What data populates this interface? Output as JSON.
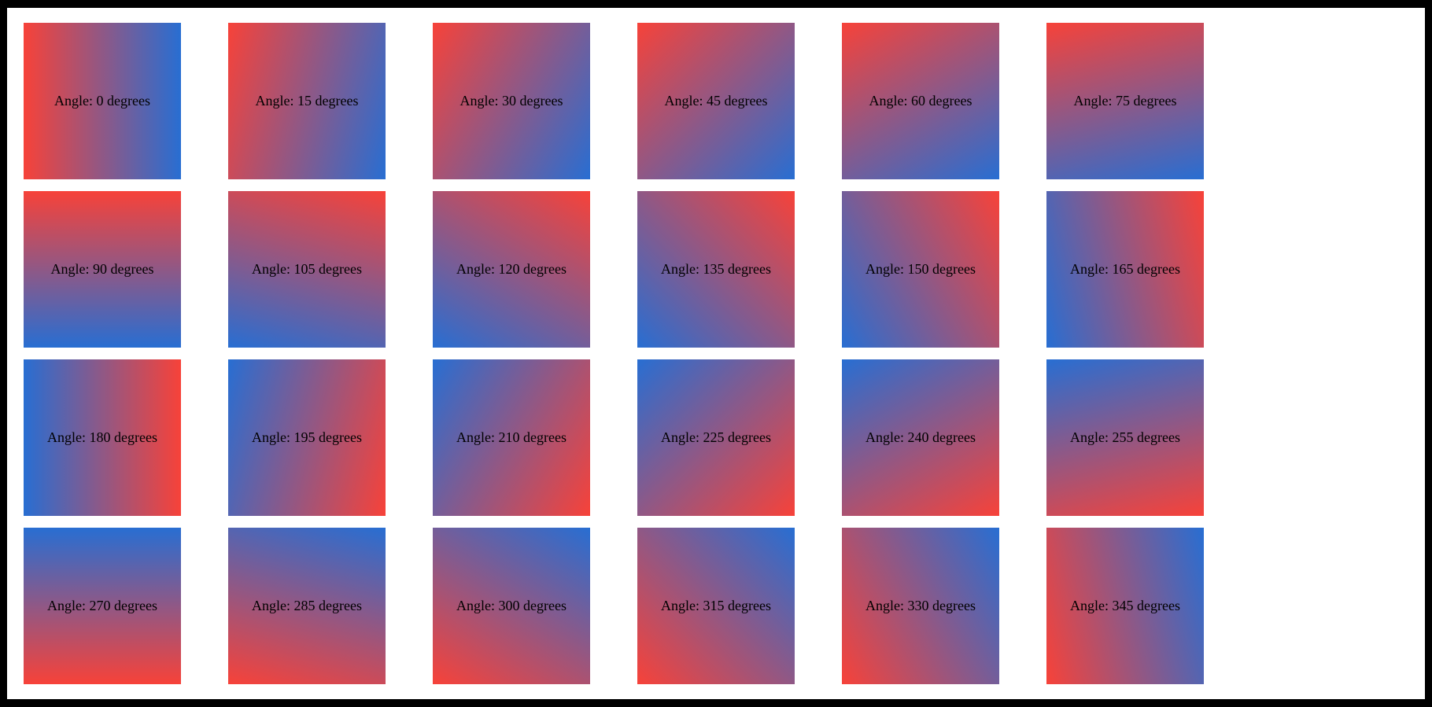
{
  "page": {
    "background": "#ffffff",
    "frame_color": "#000000"
  },
  "colors": {
    "gradient_start": "#f74239",
    "gradient_end": "#286ed2",
    "label_text": "#000000"
  },
  "tiles": [
    {
      "angle_degrees": 0,
      "label": "Angle: 0 degrees"
    },
    {
      "angle_degrees": 15,
      "label": "Angle: 15 degrees"
    },
    {
      "angle_degrees": 30,
      "label": "Angle: 30 degrees"
    },
    {
      "angle_degrees": 45,
      "label": "Angle: 45 degrees"
    },
    {
      "angle_degrees": 60,
      "label": "Angle: 60 degrees"
    },
    {
      "angle_degrees": 75,
      "label": "Angle: 75 degrees"
    },
    {
      "angle_degrees": 90,
      "label": "Angle: 90 degrees"
    },
    {
      "angle_degrees": 105,
      "label": "Angle: 105 degrees"
    },
    {
      "angle_degrees": 120,
      "label": "Angle: 120 degrees"
    },
    {
      "angle_degrees": 135,
      "label": "Angle: 135 degrees"
    },
    {
      "angle_degrees": 150,
      "label": "Angle: 150 degrees"
    },
    {
      "angle_degrees": 165,
      "label": "Angle: 165 degrees"
    },
    {
      "angle_degrees": 180,
      "label": "Angle: 180 degrees"
    },
    {
      "angle_degrees": 195,
      "label": "Angle: 195 degrees"
    },
    {
      "angle_degrees": 210,
      "label": "Angle: 210 degrees"
    },
    {
      "angle_degrees": 225,
      "label": "Angle: 225 degrees"
    },
    {
      "angle_degrees": 240,
      "label": "Angle: 240 degrees"
    },
    {
      "angle_degrees": 255,
      "label": "Angle: 255 degrees"
    },
    {
      "angle_degrees": 270,
      "label": "Angle: 270 degrees"
    },
    {
      "angle_degrees": 285,
      "label": "Angle: 285 degrees"
    },
    {
      "angle_degrees": 300,
      "label": "Angle: 300 degrees"
    },
    {
      "angle_degrees": 315,
      "label": "Angle: 315 degrees"
    },
    {
      "angle_degrees": 330,
      "label": "Angle: 330 degrees"
    },
    {
      "angle_degrees": 345,
      "label": "Angle: 345 degrees"
    }
  ]
}
